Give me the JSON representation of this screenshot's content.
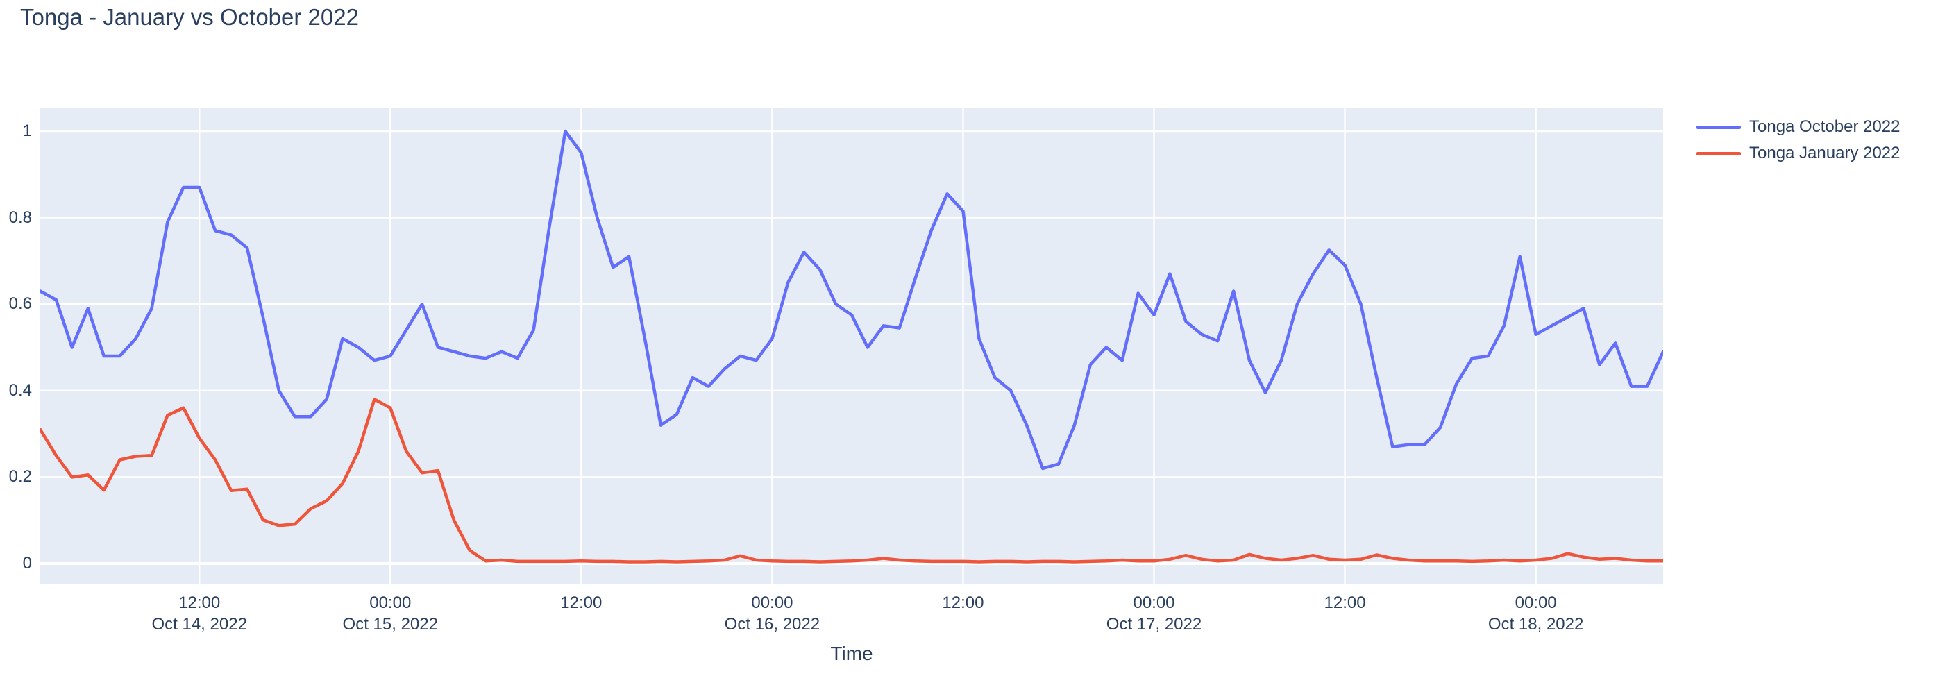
{
  "page": {
    "background": "#ffffff",
    "text_color": "#2a3f5f"
  },
  "chart_data": {
    "type": "line",
    "title": "Tonga - January vs October 2022",
    "xlabel": "Time",
    "ylabel": "",
    "x_start": "2022-10-14 02:00",
    "x_end": "2022-10-18 08:00",
    "x_interval_hours": 1,
    "n_points": 103,
    "ylim": [
      -0.048,
      1.055
    ],
    "xlim": [
      "2022-10-14 02:00",
      "2022-10-18 08:00"
    ],
    "grid": true,
    "plot_bgcolor": "#E5ECF6",
    "gridline_color": "#FFFFFF",
    "legend_position": "right-outside-top",
    "y_ticks": [
      {
        "value": 0,
        "label": "0"
      },
      {
        "value": 0.2,
        "label": "0.2"
      },
      {
        "value": 0.4,
        "label": "0.4"
      },
      {
        "value": 0.6,
        "label": "0.6"
      },
      {
        "value": 0.8,
        "label": "0.8"
      },
      {
        "value": 1,
        "label": "1"
      }
    ],
    "x_ticks": [
      {
        "offset_hours": 10,
        "line1": "12:00",
        "line2": "Oct 14, 2022"
      },
      {
        "offset_hours": 22,
        "line1": "00:00",
        "line2": "Oct 15, 2022"
      },
      {
        "offset_hours": 34,
        "line1": "12:00",
        "line2": ""
      },
      {
        "offset_hours": 46,
        "line1": "00:00",
        "line2": "Oct 16, 2022"
      },
      {
        "offset_hours": 58,
        "line1": "12:00",
        "line2": ""
      },
      {
        "offset_hours": 70,
        "line1": "00:00",
        "line2": "Oct 17, 2022"
      },
      {
        "offset_hours": 82,
        "line1": "12:00",
        "line2": ""
      },
      {
        "offset_hours": 94,
        "line1": "00:00",
        "line2": "Oct 18, 2022"
      }
    ],
    "series": [
      {
        "name": "Tonga October 2022",
        "color": "#636EFA",
        "values": [
          0.63,
          0.61,
          0.5,
          0.59,
          0.48,
          0.48,
          0.52,
          0.59,
          0.79,
          0.87,
          0.87,
          0.77,
          0.76,
          0.73,
          0.57,
          0.4,
          0.34,
          0.34,
          0.38,
          0.52,
          0.5,
          0.47,
          0.48,
          0.54,
          0.6,
          0.5,
          0.49,
          0.48,
          0.475,
          0.49,
          0.475,
          0.54,
          0.78,
          1.0,
          0.95,
          0.8,
          0.685,
          0.71,
          0.52,
          0.32,
          0.345,
          0.43,
          0.41,
          0.45,
          0.48,
          0.47,
          0.52,
          0.65,
          0.72,
          0.68,
          0.6,
          0.575,
          0.5,
          0.55,
          0.545,
          0.66,
          0.77,
          0.855,
          0.815,
          0.52,
          0.43,
          0.4,
          0.32,
          0.22,
          0.23,
          0.32,
          0.46,
          0.5,
          0.47,
          0.625,
          0.575,
          0.67,
          0.56,
          0.53,
          0.515,
          0.63,
          0.47,
          0.395,
          0.47,
          0.6,
          0.67,
          0.725,
          0.69,
          0.6,
          0.43,
          0.27,
          0.275,
          0.275,
          0.315,
          0.415,
          0.475,
          0.48,
          0.55,
          0.71,
          0.53,
          0.55,
          0.57,
          0.59,
          0.46,
          0.51,
          0.41,
          0.41,
          0.49
        ]
      },
      {
        "name": "Tonga January 2022",
        "color": "#EF553B",
        "values": [
          0.31,
          0.25,
          0.2,
          0.205,
          0.17,
          0.24,
          0.248,
          0.25,
          0.343,
          0.36,
          0.29,
          0.24,
          0.169,
          0.172,
          0.101,
          0.088,
          0.091,
          0.127,
          0.145,
          0.185,
          0.26,
          0.38,
          0.36,
          0.26,
          0.21,
          0.215,
          0.1,
          0.03,
          0.006,
          0.008,
          0.005,
          0.005,
          0.005,
          0.005,
          0.006,
          0.005,
          0.005,
          0.004,
          0.004,
          0.005,
          0.004,
          0.005,
          0.006,
          0.008,
          0.018,
          0.008,
          0.006,
          0.005,
          0.005,
          0.004,
          0.005,
          0.006,
          0.008,
          0.012,
          0.008,
          0.006,
          0.005,
          0.005,
          0.005,
          0.004,
          0.005,
          0.005,
          0.004,
          0.005,
          0.005,
          0.004,
          0.005,
          0.006,
          0.008,
          0.006,
          0.006,
          0.01,
          0.019,
          0.01,
          0.006,
          0.008,
          0.021,
          0.012,
          0.008,
          0.012,
          0.019,
          0.01,
          0.008,
          0.01,
          0.02,
          0.012,
          0.008,
          0.006,
          0.006,
          0.006,
          0.005,
          0.006,
          0.008,
          0.006,
          0.008,
          0.012,
          0.023,
          0.015,
          0.01,
          0.012,
          0.008,
          0.006,
          0.006
        ]
      }
    ]
  }
}
